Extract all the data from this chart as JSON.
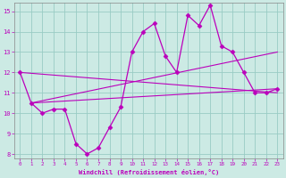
{
  "xlabel": "Windchill (Refroidissement éolien,°C)",
  "background_color": "#cceae4",
  "grid_color": "#99ccc4",
  "line_color": "#bb00bb",
  "xlim": [
    -0.5,
    23.5
  ],
  "ylim": [
    7.8,
    15.4
  ],
  "yticks": [
    8,
    9,
    10,
    11,
    12,
    13,
    14,
    15
  ],
  "xticks": [
    0,
    1,
    2,
    3,
    4,
    5,
    6,
    7,
    8,
    9,
    10,
    11,
    12,
    13,
    14,
    15,
    16,
    17,
    18,
    19,
    20,
    21,
    22,
    23
  ],
  "main_x": [
    0,
    1,
    2,
    3,
    4,
    5,
    6,
    7,
    8,
    9,
    10,
    11,
    12,
    13,
    14,
    15,
    16,
    17,
    18,
    19,
    20,
    21,
    22,
    23
  ],
  "main_y": [
    12.0,
    10.5,
    10.0,
    10.2,
    10.2,
    8.5,
    8.0,
    8.3,
    9.3,
    10.3,
    13.0,
    14.0,
    14.4,
    12.8,
    12.0,
    14.8,
    14.3,
    15.3,
    13.3,
    13.0,
    12.0,
    11.0,
    11.0,
    11.2
  ],
  "trend1_x": [
    1,
    23
  ],
  "trend1_y": [
    10.5,
    11.2
  ],
  "trend2_x": [
    1,
    23
  ],
  "trend2_y": [
    10.5,
    13.0
  ],
  "trend3_x": [
    0,
    23
  ],
  "trend3_y": [
    12.0,
    11.0
  ]
}
